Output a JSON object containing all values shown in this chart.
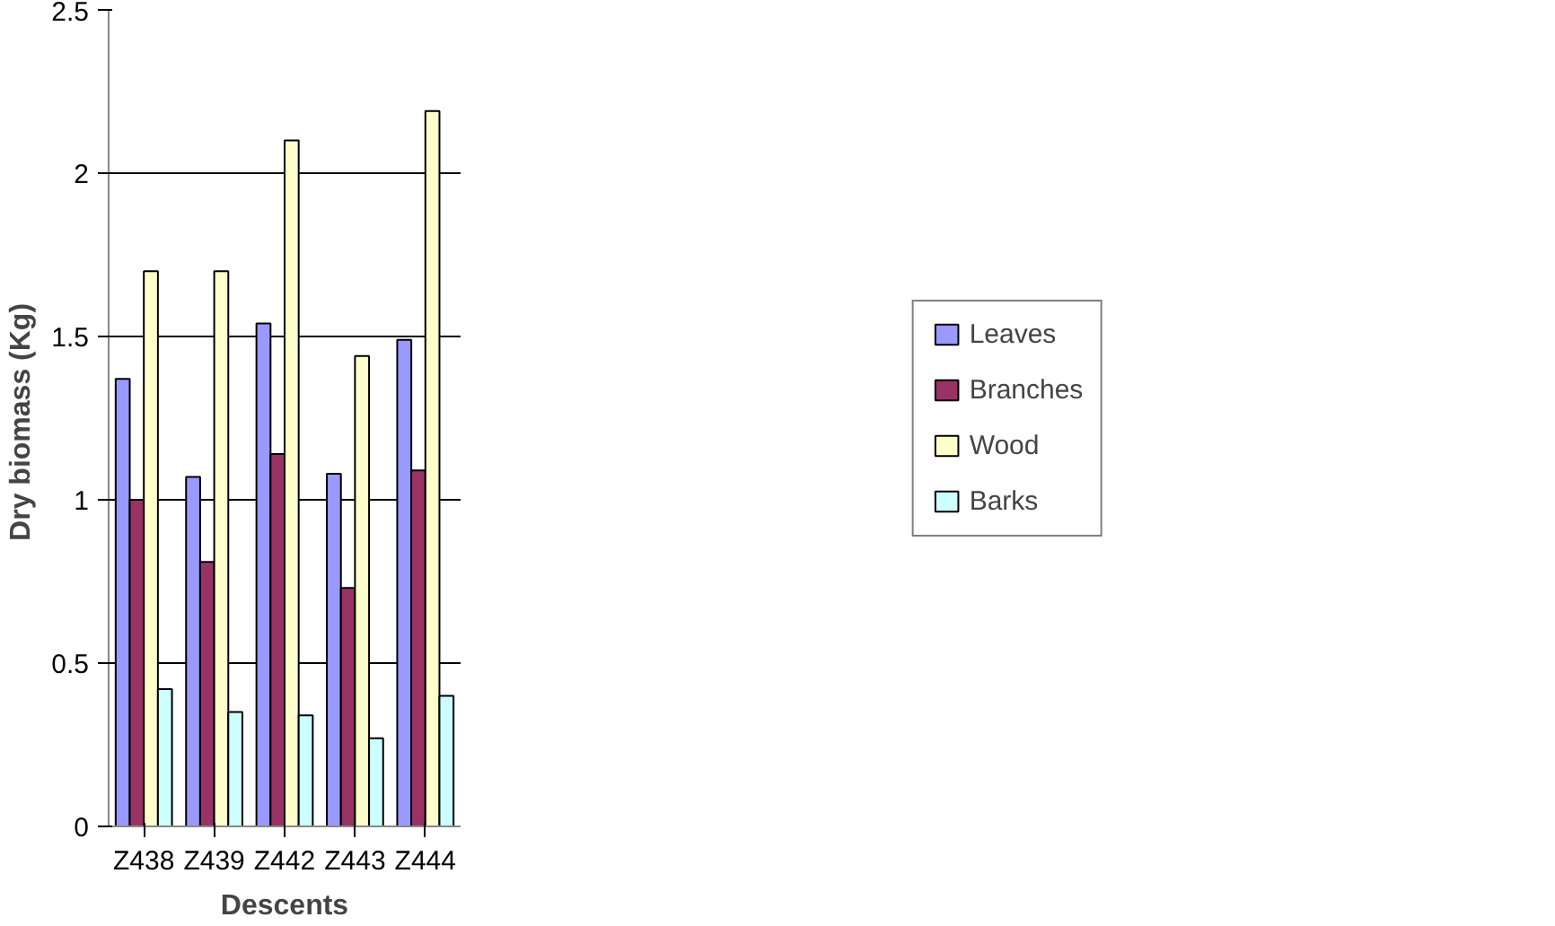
{
  "chart_data": {
    "type": "bar",
    "xlabel": "Descents",
    "ylabel": "Dry  biomass (Kg)",
    "categories": [
      "Z438",
      "Z439",
      "Z442",
      "Z443",
      "Z444"
    ],
    "series": [
      {
        "name": "Leaves",
        "color": "#9999ff",
        "values": [
          1.37,
          1.07,
          1.54,
          1.08,
          1.49
        ]
      },
      {
        "name": "Branches",
        "color": "#993366",
        "values": [
          1.0,
          0.81,
          1.14,
          0.73,
          1.09
        ]
      },
      {
        "name": "Wood",
        "color": "#ffffcc",
        "values": [
          1.7,
          1.7,
          2.1,
          1.44,
          2.19
        ]
      },
      {
        "name": "Barks",
        "color": "#ccffff",
        "values": [
          0.42,
          0.35,
          0.34,
          0.27,
          0.4
        ]
      }
    ],
    "ylim": [
      0,
      2.5
    ],
    "yticks": [
      0,
      0.5,
      1,
      1.5,
      2,
      2.5
    ],
    "grid": "y",
    "legend": "right"
  }
}
